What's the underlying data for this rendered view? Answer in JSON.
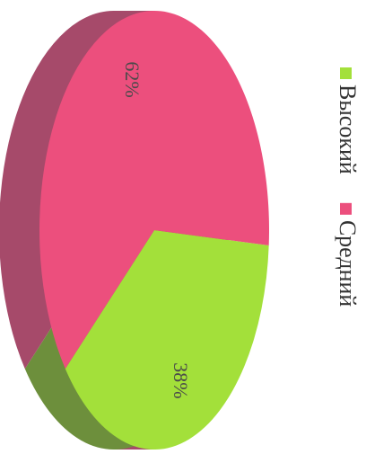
{
  "chart_data": {
    "type": "pie",
    "categories": [
      "Высокий",
      "Средний"
    ],
    "values": [
      38,
      62
    ],
    "value_labels": [
      "38%",
      "62%"
    ],
    "colors": [
      "#a3e03a",
      "#ec4f7d"
    ],
    "side_colors": [
      "#6d8f3c",
      "#a64a6a"
    ]
  }
}
